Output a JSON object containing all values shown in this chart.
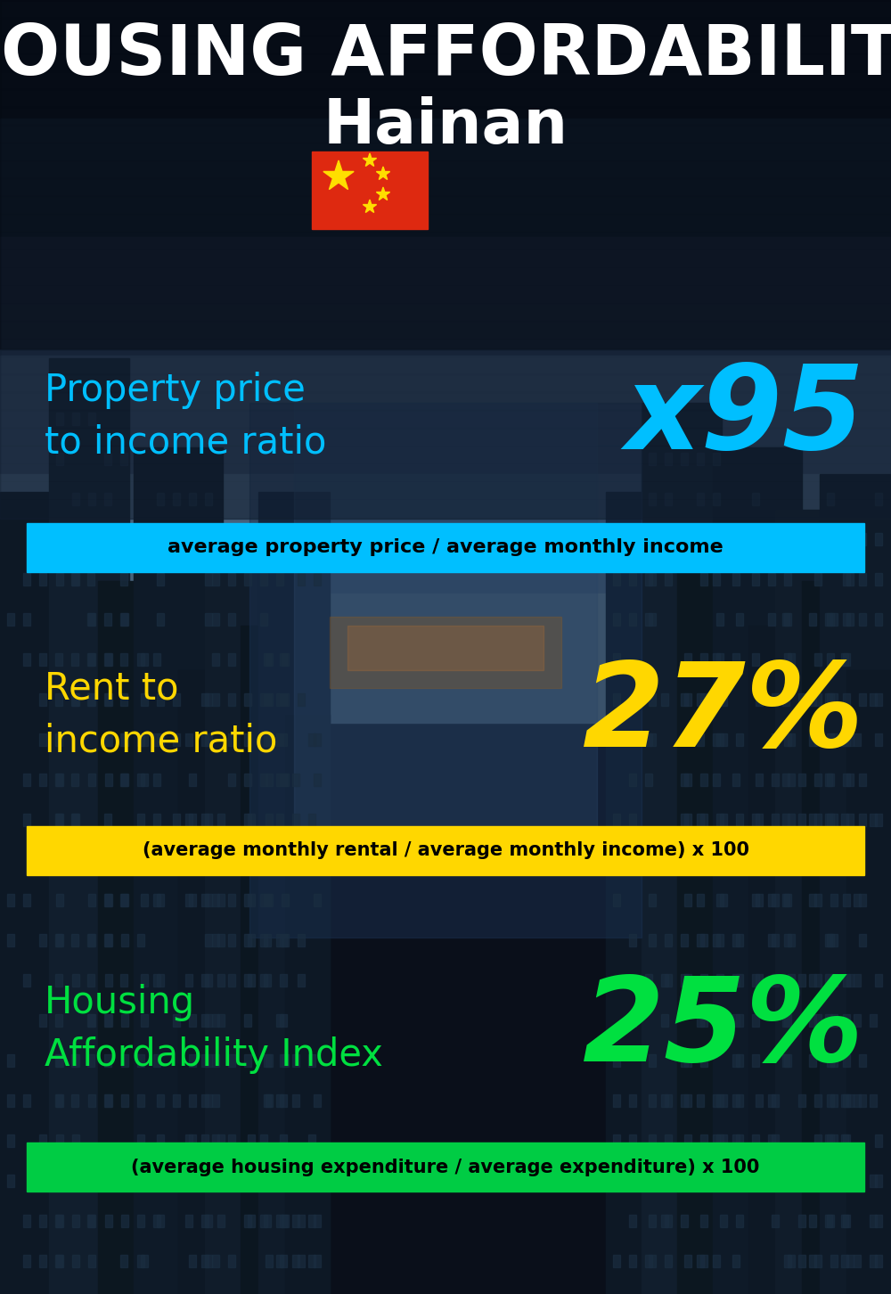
{
  "title_line1": "HOUSING AFFORDABILITY",
  "title_line2": "Hainan",
  "bg_color": "#0a0f1a",
  "section1_label": "Property price\nto income ratio",
  "section1_value": "x95",
  "section1_label_color": "#00bfff",
  "section1_value_color": "#00bfff",
  "section1_band_text": "average property price / average monthly income",
  "section1_band_bg": "#00bfff",
  "section1_band_text_color": "#000000",
  "section2_label": "Rent to\nincome ratio",
  "section2_value": "27%",
  "section2_label_color": "#ffd700",
  "section2_value_color": "#ffd700",
  "section2_band_text": "(average monthly rental / average monthly income) x 100",
  "section2_band_bg": "#ffd700",
  "section2_band_text_color": "#000000",
  "section3_label": "Housing\nAffordability Index",
  "section3_value": "25%",
  "section3_label_color": "#00e040",
  "section3_value_color": "#00e040",
  "section3_band_text": "(average housing expenditure / average expenditure) x 100",
  "section3_band_bg": "#00cc44",
  "section3_band_text_color": "#000000",
  "title_color": "#ffffff",
  "subtitle_color": "#ffffff",
  "flag_red": "#de2910",
  "flag_yellow": "#ffde00"
}
